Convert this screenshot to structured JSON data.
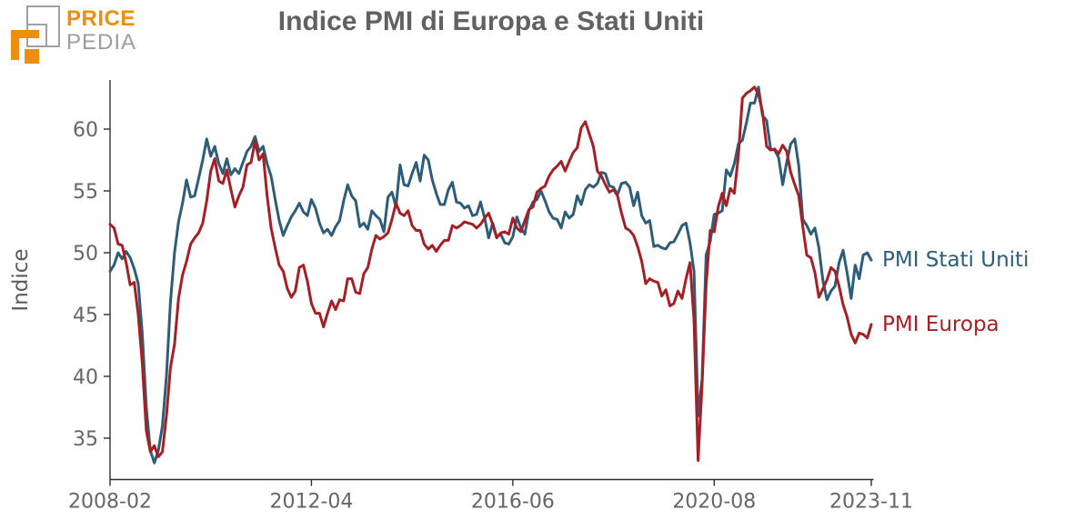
{
  "header": {
    "logo": {
      "line1": "PRICE",
      "line2": "PEDIA",
      "orange": "#ec8e0f",
      "gray": "#9c9c9c"
    },
    "title": "Indice PMI di Europa e Stati Uniti"
  },
  "chart_data": {
    "type": "line",
    "title": "Indice PMI di Europa e Stati Uniti",
    "xlabel": "",
    "ylabel": "Indice",
    "grid": false,
    "x_frequency": "monthly",
    "x_start": "2008-02",
    "x_end": "2023-11",
    "x_ticks": [
      "2008-02",
      "2012-04",
      "2016-06",
      "2020-08",
      "2023-11"
    ],
    "x_tick_month_index": [
      0,
      50,
      100,
      150,
      189
    ],
    "y_ticks": [
      35,
      40,
      45,
      50,
      55,
      60
    ],
    "ylim": [
      31.7,
      64.0
    ],
    "legend_position": "end-of-line-labels",
    "axis_color": "#2f2f2f",
    "tick_label_color": "#666666",
    "series": [
      {
        "name": "PMI Stati Uniti",
        "color": "#2d5d79",
        "values": [
          48.5,
          49.0,
          50.0,
          49.5,
          50.1,
          49.6,
          48.7,
          47.5,
          43.5,
          37.5,
          34.0,
          33.0,
          34.0,
          36.0,
          40.0,
          46.0,
          50.0,
          52.5,
          54.0,
          55.9,
          54.5,
          54.6,
          56.0,
          57.5,
          59.2,
          57.8,
          58.6,
          57.2,
          56.4,
          57.6,
          56.3,
          56.8,
          56.4,
          57.3,
          58.2,
          58.6,
          59.4,
          58.2,
          58.6,
          57.2,
          56.2,
          54.3,
          52.6,
          51.4,
          52.2,
          52.9,
          53.4,
          54.0,
          53.3,
          53.0,
          54.3,
          53.6,
          52.4,
          51.6,
          51.9,
          51.4,
          52.1,
          52.6,
          54.2,
          55.5,
          54.6,
          54.2,
          52.1,
          52.4,
          51.9,
          53.4,
          53.0,
          52.7,
          51.7,
          54.5,
          54.9,
          53.7,
          57.1,
          55.5,
          55.4,
          56.4,
          57.3,
          55.8,
          57.9,
          57.5,
          55.9,
          54.8,
          53.9,
          53.9,
          55.1,
          55.7,
          54.1,
          54.0,
          53.6,
          53.8,
          53.0,
          53.1,
          54.1,
          52.8,
          51.2,
          52.4,
          51.3,
          51.5,
          50.8,
          50.7,
          51.3,
          52.9,
          52.0,
          51.5,
          53.4,
          54.1,
          54.3,
          55.0,
          54.2,
          53.3,
          52.8,
          52.7,
          52.0,
          53.3,
          52.8,
          53.1,
          54.6,
          53.9,
          55.1,
          55.5,
          55.3,
          55.6,
          56.5,
          56.4,
          55.4,
          55.3,
          54.7,
          55.6,
          55.7,
          55.3,
          53.8,
          54.9,
          53.0,
          52.4,
          52.6,
          50.5,
          50.6,
          50.4,
          50.3,
          50.8,
          50.9,
          51.5,
          52.2,
          52.4,
          50.8,
          48.5,
          36.8,
          39.8,
          49.8,
          50.9,
          53.1,
          53.2,
          53.4,
          56.7,
          56.2,
          57.2,
          58.8,
          59.1,
          60.5,
          62.1,
          62.1,
          63.4,
          61.1,
          60.7,
          58.4,
          58.3,
          57.7,
          55.5,
          57.3,
          58.8,
          59.2,
          57.0,
          52.7,
          52.2,
          51.5,
          52.0,
          50.4,
          47.7,
          46.2,
          46.9,
          47.3,
          49.2,
          50.2,
          48.4,
          46.3,
          49.0,
          47.9,
          49.8,
          50.0,
          49.4
        ]
      },
      {
        "name": "PMI Europa",
        "color": "#a51f24",
        "values": [
          52.3,
          52.0,
          50.7,
          50.6,
          49.2,
          47.4,
          47.6,
          45.0,
          41.1,
          35.6,
          33.9,
          34.4,
          33.5,
          33.9,
          36.8,
          40.7,
          42.6,
          46.3,
          48.2,
          49.3,
          50.7,
          51.2,
          51.6,
          52.4,
          54.2,
          56.6,
          57.6,
          55.8,
          55.6,
          56.7,
          55.1,
          53.7,
          54.6,
          55.3,
          57.1,
          57.3,
          59.0,
          57.5,
          58.0,
          54.6,
          52.0,
          50.4,
          49.0,
          48.5,
          47.1,
          46.4,
          46.9,
          48.8,
          49.0,
          47.7,
          45.9,
          45.1,
          45.1,
          44.0,
          45.1,
          46.1,
          45.4,
          46.2,
          46.1,
          47.9,
          47.9,
          46.8,
          46.7,
          48.3,
          48.8,
          50.3,
          51.4,
          51.1,
          51.3,
          51.6,
          52.7,
          54.0,
          53.2,
          53.0,
          53.4,
          52.2,
          51.8,
          51.8,
          50.7,
          50.3,
          50.6,
          50.1,
          50.6,
          51.0,
          51.0,
          52.2,
          52.0,
          52.2,
          52.5,
          52.4,
          52.3,
          52.0,
          52.3,
          52.8,
          53.2,
          52.3,
          51.2,
          51.6,
          51.7,
          51.5,
          52.8,
          52.0,
          51.7,
          52.6,
          53.5,
          53.7,
          54.9,
          55.2,
          55.4,
          56.2,
          56.7,
          57.0,
          57.4,
          56.6,
          57.4,
          58.1,
          58.5,
          60.1,
          60.6,
          59.6,
          58.6,
          56.6,
          56.2,
          55.5,
          54.9,
          55.1,
          54.6,
          53.2,
          52.0,
          51.8,
          51.4,
          50.5,
          49.3,
          47.5,
          47.9,
          47.7,
          47.6,
          46.5,
          47.0,
          45.7,
          45.9,
          46.9,
          46.3,
          47.9,
          49.2,
          44.5,
          33.2,
          39.4,
          47.4,
          51.8,
          51.7,
          53.7,
          54.8,
          53.8,
          55.2,
          54.8,
          57.9,
          62.5,
          62.9,
          63.1,
          63.4,
          62.8,
          61.4,
          58.6,
          58.3,
          58.4,
          58.0,
          58.7,
          58.2,
          56.5,
          55.5,
          54.6,
          52.1,
          49.8,
          49.6,
          48.4,
          46.4,
          47.1,
          47.8,
          48.8,
          48.5,
          47.3,
          45.8,
          44.8,
          43.4,
          42.7,
          43.5,
          43.4,
          43.1,
          44.2
        ]
      }
    ]
  }
}
